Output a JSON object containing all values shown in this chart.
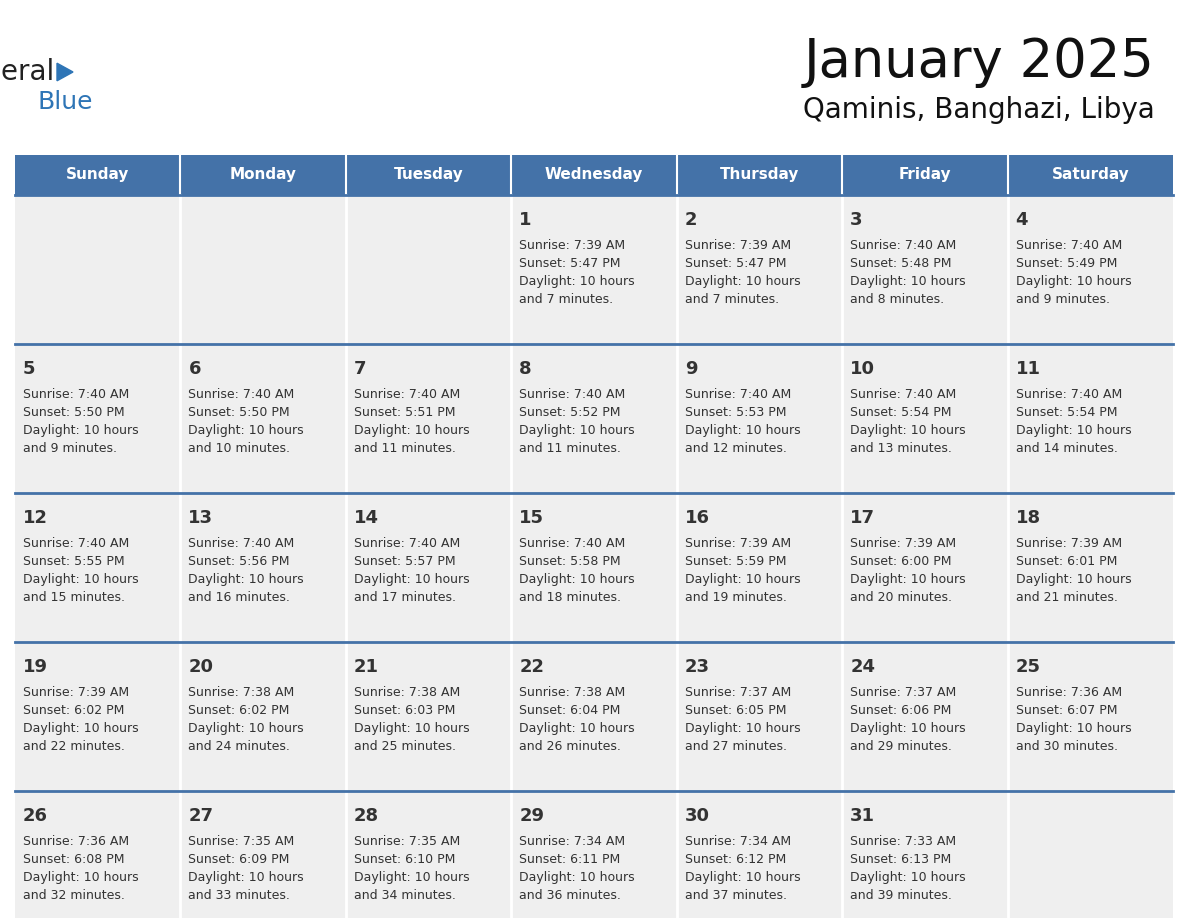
{
  "title": "January 2025",
  "subtitle": "Qaminis, Banghazi, Libya",
  "days_of_week": [
    "Sunday",
    "Monday",
    "Tuesday",
    "Wednesday",
    "Thursday",
    "Friday",
    "Saturday"
  ],
  "header_bg": "#4472a8",
  "header_text": "#ffffff",
  "cell_bg": "#efefef",
  "cell_bg_white": "#ffffff",
  "separator_color": "#4472a8",
  "text_color": "#333333",
  "logo_general_color": "#222222",
  "logo_blue_color": "#2e75b6",
  "logo_triangle_color": "#2e75b6",
  "calendar_data": [
    [
      null,
      null,
      null,
      {
        "day": 1,
        "sunrise": "7:39 AM",
        "sunset": "5:47 PM",
        "daylight": "10 hours and 7 minutes."
      },
      {
        "day": 2,
        "sunrise": "7:39 AM",
        "sunset": "5:47 PM",
        "daylight": "10 hours and 7 minutes."
      },
      {
        "day": 3,
        "sunrise": "7:40 AM",
        "sunset": "5:48 PM",
        "daylight": "10 hours and 8 minutes."
      },
      {
        "day": 4,
        "sunrise": "7:40 AM",
        "sunset": "5:49 PM",
        "daylight": "10 hours and 9 minutes."
      }
    ],
    [
      {
        "day": 5,
        "sunrise": "7:40 AM",
        "sunset": "5:50 PM",
        "daylight": "10 hours and 9 minutes."
      },
      {
        "day": 6,
        "sunrise": "7:40 AM",
        "sunset": "5:50 PM",
        "daylight": "10 hours and 10 minutes."
      },
      {
        "day": 7,
        "sunrise": "7:40 AM",
        "sunset": "5:51 PM",
        "daylight": "10 hours and 11 minutes."
      },
      {
        "day": 8,
        "sunrise": "7:40 AM",
        "sunset": "5:52 PM",
        "daylight": "10 hours and 11 minutes."
      },
      {
        "day": 9,
        "sunrise": "7:40 AM",
        "sunset": "5:53 PM",
        "daylight": "10 hours and 12 minutes."
      },
      {
        "day": 10,
        "sunrise": "7:40 AM",
        "sunset": "5:54 PM",
        "daylight": "10 hours and 13 minutes."
      },
      {
        "day": 11,
        "sunrise": "7:40 AM",
        "sunset": "5:54 PM",
        "daylight": "10 hours and 14 minutes."
      }
    ],
    [
      {
        "day": 12,
        "sunrise": "7:40 AM",
        "sunset": "5:55 PM",
        "daylight": "10 hours and 15 minutes."
      },
      {
        "day": 13,
        "sunrise": "7:40 AM",
        "sunset": "5:56 PM",
        "daylight": "10 hours and 16 minutes."
      },
      {
        "day": 14,
        "sunrise": "7:40 AM",
        "sunset": "5:57 PM",
        "daylight": "10 hours and 17 minutes."
      },
      {
        "day": 15,
        "sunrise": "7:40 AM",
        "sunset": "5:58 PM",
        "daylight": "10 hours and 18 minutes."
      },
      {
        "day": 16,
        "sunrise": "7:39 AM",
        "sunset": "5:59 PM",
        "daylight": "10 hours and 19 minutes."
      },
      {
        "day": 17,
        "sunrise": "7:39 AM",
        "sunset": "6:00 PM",
        "daylight": "10 hours and 20 minutes."
      },
      {
        "day": 18,
        "sunrise": "7:39 AM",
        "sunset": "6:01 PM",
        "daylight": "10 hours and 21 minutes."
      }
    ],
    [
      {
        "day": 19,
        "sunrise": "7:39 AM",
        "sunset": "6:02 PM",
        "daylight": "10 hours and 22 minutes."
      },
      {
        "day": 20,
        "sunrise": "7:38 AM",
        "sunset": "6:02 PM",
        "daylight": "10 hours and 24 minutes."
      },
      {
        "day": 21,
        "sunrise": "7:38 AM",
        "sunset": "6:03 PM",
        "daylight": "10 hours and 25 minutes."
      },
      {
        "day": 22,
        "sunrise": "7:38 AM",
        "sunset": "6:04 PM",
        "daylight": "10 hours and 26 minutes."
      },
      {
        "day": 23,
        "sunrise": "7:37 AM",
        "sunset": "6:05 PM",
        "daylight": "10 hours and 27 minutes."
      },
      {
        "day": 24,
        "sunrise": "7:37 AM",
        "sunset": "6:06 PM",
        "daylight": "10 hours and 29 minutes."
      },
      {
        "day": 25,
        "sunrise": "7:36 AM",
        "sunset": "6:07 PM",
        "daylight": "10 hours and 30 minutes."
      }
    ],
    [
      {
        "day": 26,
        "sunrise": "7:36 AM",
        "sunset": "6:08 PM",
        "daylight": "10 hours and 32 minutes."
      },
      {
        "day": 27,
        "sunrise": "7:35 AM",
        "sunset": "6:09 PM",
        "daylight": "10 hours and 33 minutes."
      },
      {
        "day": 28,
        "sunrise": "7:35 AM",
        "sunset": "6:10 PM",
        "daylight": "10 hours and 34 minutes."
      },
      {
        "day": 29,
        "sunrise": "7:34 AM",
        "sunset": "6:11 PM",
        "daylight": "10 hours and 36 minutes."
      },
      {
        "day": 30,
        "sunrise": "7:34 AM",
        "sunset": "6:12 PM",
        "daylight": "10 hours and 37 minutes."
      },
      {
        "day": 31,
        "sunrise": "7:33 AM",
        "sunset": "6:13 PM",
        "daylight": "10 hours and 39 minutes."
      },
      null
    ]
  ]
}
